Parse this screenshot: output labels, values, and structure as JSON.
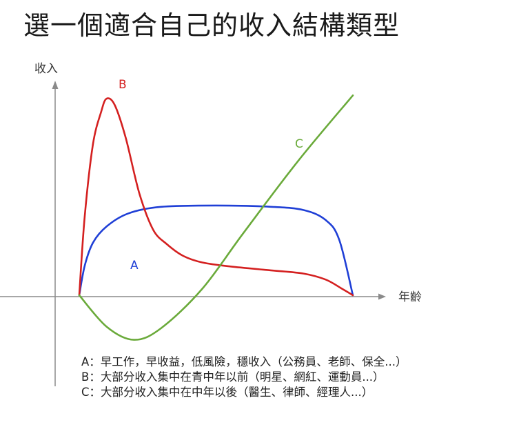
{
  "title": "選一個適合自己的收入結構類型",
  "chart_data": {
    "type": "line",
    "ylabel": "收入",
    "xlabel": "年齡",
    "grid": false,
    "series": [
      {
        "name": "A",
        "color": "#1f3fd6",
        "points": [
          [
            0,
            0
          ],
          [
            0.02,
            0.45
          ],
          [
            0.05,
            0.8
          ],
          [
            0.1,
            1.05
          ],
          [
            0.18,
            1.25
          ],
          [
            0.3,
            1.35
          ],
          [
            0.5,
            1.37
          ],
          [
            0.7,
            1.35
          ],
          [
            0.82,
            1.3
          ],
          [
            0.9,
            1.15
          ],
          [
            0.95,
            0.85
          ],
          [
            1,
            0
          ]
        ]
      },
      {
        "name": "B",
        "color": "#d42020",
        "points": [
          [
            0,
            0
          ],
          [
            0.02,
            1.2
          ],
          [
            0.05,
            2.3
          ],
          [
            0.08,
            2.8
          ],
          [
            0.1,
            3.0
          ],
          [
            0.13,
            2.9
          ],
          [
            0.17,
            2.4
          ],
          [
            0.22,
            1.55
          ],
          [
            0.27,
            1.0
          ],
          [
            0.32,
            0.78
          ],
          [
            0.38,
            0.6
          ],
          [
            0.45,
            0.5
          ],
          [
            0.55,
            0.44
          ],
          [
            0.7,
            0.38
          ],
          [
            0.82,
            0.33
          ],
          [
            0.9,
            0.24
          ],
          [
            0.96,
            0.1
          ],
          [
            1,
            0
          ]
        ]
      },
      {
        "name": "C",
        "color": "#6aaa3a",
        "points": [
          [
            0,
            0
          ],
          [
            0.1,
            -0.48
          ],
          [
            0.2,
            -0.68
          ],
          [
            0.3,
            -0.5
          ],
          [
            0.45,
            0.1
          ],
          [
            0.6,
            0.95
          ],
          [
            0.8,
            2.05
          ],
          [
            1.0,
            3.05
          ]
        ]
      }
    ],
    "legend": [
      {
        "key": "A",
        "text": "A：早工作，早收益，低風險，穩收入（公務員、老師、保全...）"
      },
      {
        "key": "B",
        "text": "B：大部分收入集中在青中年以前（明星、網紅、運動員...）"
      },
      {
        "key": "C",
        "text": "C：大部分收入集中在中年以後（醫生、律師、經理人...）"
      }
    ]
  }
}
